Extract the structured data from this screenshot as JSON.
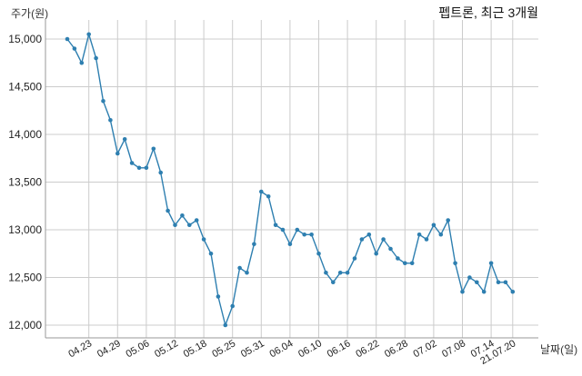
{
  "chart_data": {
    "type": "line",
    "title": "펩트론, 최근 3개월",
    "ylabel": "주가(원)",
    "xlabel": "날짜(일)",
    "ylim": [
      11900,
      15150
    ],
    "grid": true,
    "y_ticks": [
      12000,
      12500,
      13000,
      13500,
      14000,
      14500,
      15000
    ],
    "y_tick_labels": [
      "12,000",
      "12,500",
      "13,000",
      "13,500",
      "14,000",
      "14,500",
      "15,000"
    ],
    "x_ticks": [
      {
        "index": 3,
        "label": "04.23"
      },
      {
        "index": 7,
        "label": "04.29"
      },
      {
        "index": 11,
        "label": "05.06"
      },
      {
        "index": 15,
        "label": "05.12"
      },
      {
        "index": 19,
        "label": "05.18"
      },
      {
        "index": 23,
        "label": "05.25"
      },
      {
        "index": 27,
        "label": "05.31"
      },
      {
        "index": 31,
        "label": "06.04"
      },
      {
        "index": 35,
        "label": "06.10"
      },
      {
        "index": 39,
        "label": "06.16"
      },
      {
        "index": 43,
        "label": "06.22"
      },
      {
        "index": 47,
        "label": "06.28"
      },
      {
        "index": 51,
        "label": "07.02"
      },
      {
        "index": 55,
        "label": "07.08"
      },
      {
        "index": 59,
        "label": "07.14"
      },
      {
        "index": 62,
        "label": "21.07.20"
      }
    ],
    "series": [
      {
        "color": "#2e7fb0",
        "values": [
          15000,
          14900,
          14750,
          15050,
          14800,
          14350,
          14150,
          13800,
          13950,
          13700,
          13650,
          13650,
          13850,
          13600,
          13200,
          13050,
          13150,
          13050,
          13100,
          12900,
          12750,
          12300,
          12000,
          12200,
          12600,
          12550,
          12850,
          13400,
          13350,
          13050,
          13000,
          12850,
          13000,
          12950,
          12950,
          12750,
          12550,
          12450,
          12550,
          12550,
          12700,
          12900,
          12950,
          12750,
          12900,
          12800,
          12700,
          12650,
          12650,
          12950,
          12900,
          13050,
          12950,
          13100,
          12650,
          12350,
          12500,
          12450,
          12350,
          12650,
          12450,
          12450,
          12350
        ]
      }
    ]
  }
}
